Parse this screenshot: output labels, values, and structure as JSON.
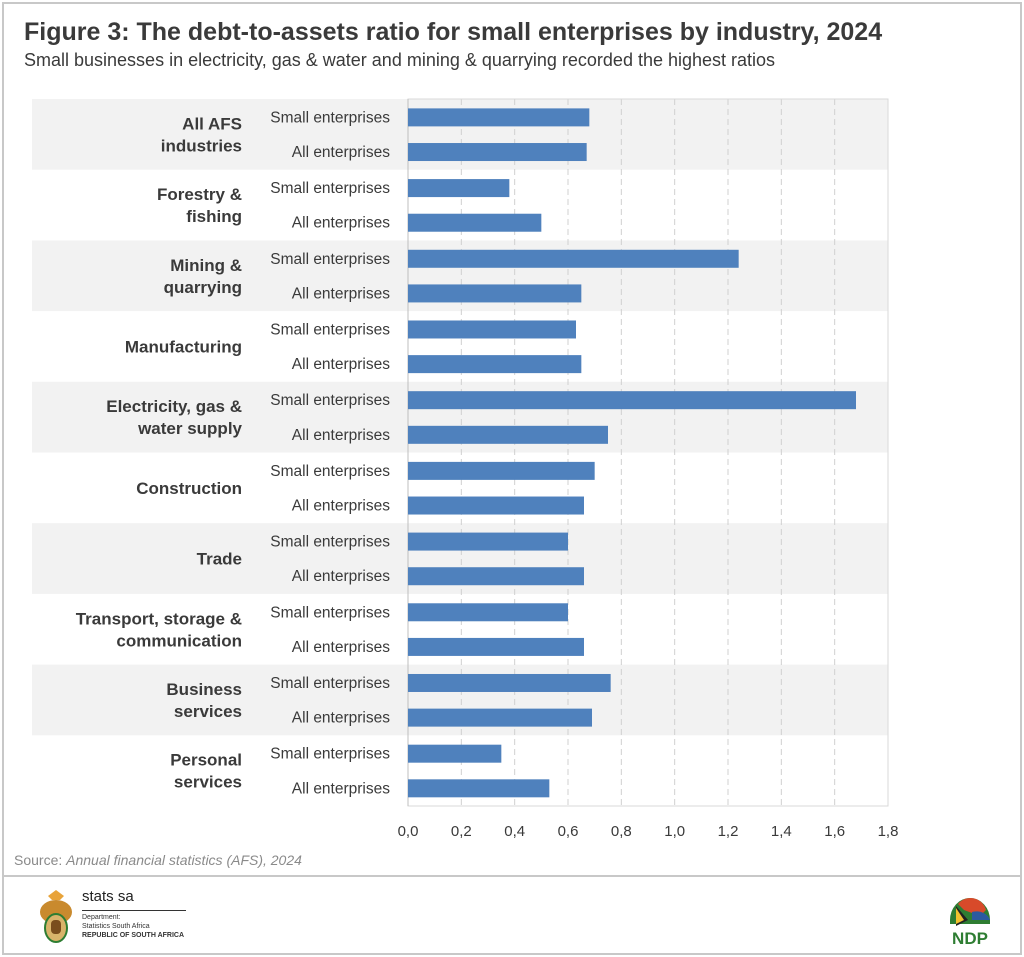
{
  "title": "Figure 3: The debt-to-assets ratio for small enterprises by industry, 2024",
  "subtitle": "Small businesses in electricity, gas & water and mining & quarrying recorded the highest ratios",
  "source_prefix": "Source: ",
  "source_text": "Annual financial statistics (AFS), 2024",
  "footer": {
    "logo_name": "stats sa",
    "dept_line1": "Department:",
    "dept_line2": "Statistics South Africa",
    "dept_line3": "REPUBLIC OF SOUTH AFRICA",
    "ndp_logo": "NDP 2030"
  },
  "colors": {
    "bar": "#4f81bd",
    "band": "#f2f2f2",
    "grid": "#d0d0d0"
  },
  "chart_data": {
    "type": "bar",
    "orientation": "horizontal",
    "xlim": [
      0,
      1.8
    ],
    "xticks": [
      "0,0",
      "0,2",
      "0,4",
      "0,6",
      "0,8",
      "1,0",
      "1,2",
      "1,4",
      "1,6",
      "1,8"
    ],
    "grid": "vertical dashed",
    "sub_labels": [
      "Small enterprises",
      "All enterprises"
    ],
    "groups": [
      {
        "label": [
          "All AFS",
          "industries"
        ],
        "values": [
          0.68,
          0.67
        ]
      },
      {
        "label": [
          "Forestry &",
          "fishing"
        ],
        "values": [
          0.38,
          0.5
        ]
      },
      {
        "label": [
          "Mining &",
          "quarrying"
        ],
        "values": [
          1.24,
          0.65
        ]
      },
      {
        "label": [
          "Manufacturing"
        ],
        "values": [
          0.63,
          0.65
        ]
      },
      {
        "label": [
          "Electricity, gas &",
          "water supply"
        ],
        "values": [
          1.68,
          0.75
        ]
      },
      {
        "label": [
          "Construction"
        ],
        "values": [
          0.7,
          0.66
        ]
      },
      {
        "label": [
          "Trade"
        ],
        "values": [
          0.6,
          0.66
        ]
      },
      {
        "label": [
          "Transport, storage &",
          "communication"
        ],
        "values": [
          0.6,
          0.66
        ]
      },
      {
        "label": [
          "Business",
          "services"
        ],
        "values": [
          0.76,
          0.69
        ]
      },
      {
        "label": [
          "Personal",
          "services"
        ],
        "values": [
          0.35,
          0.53
        ]
      }
    ]
  }
}
